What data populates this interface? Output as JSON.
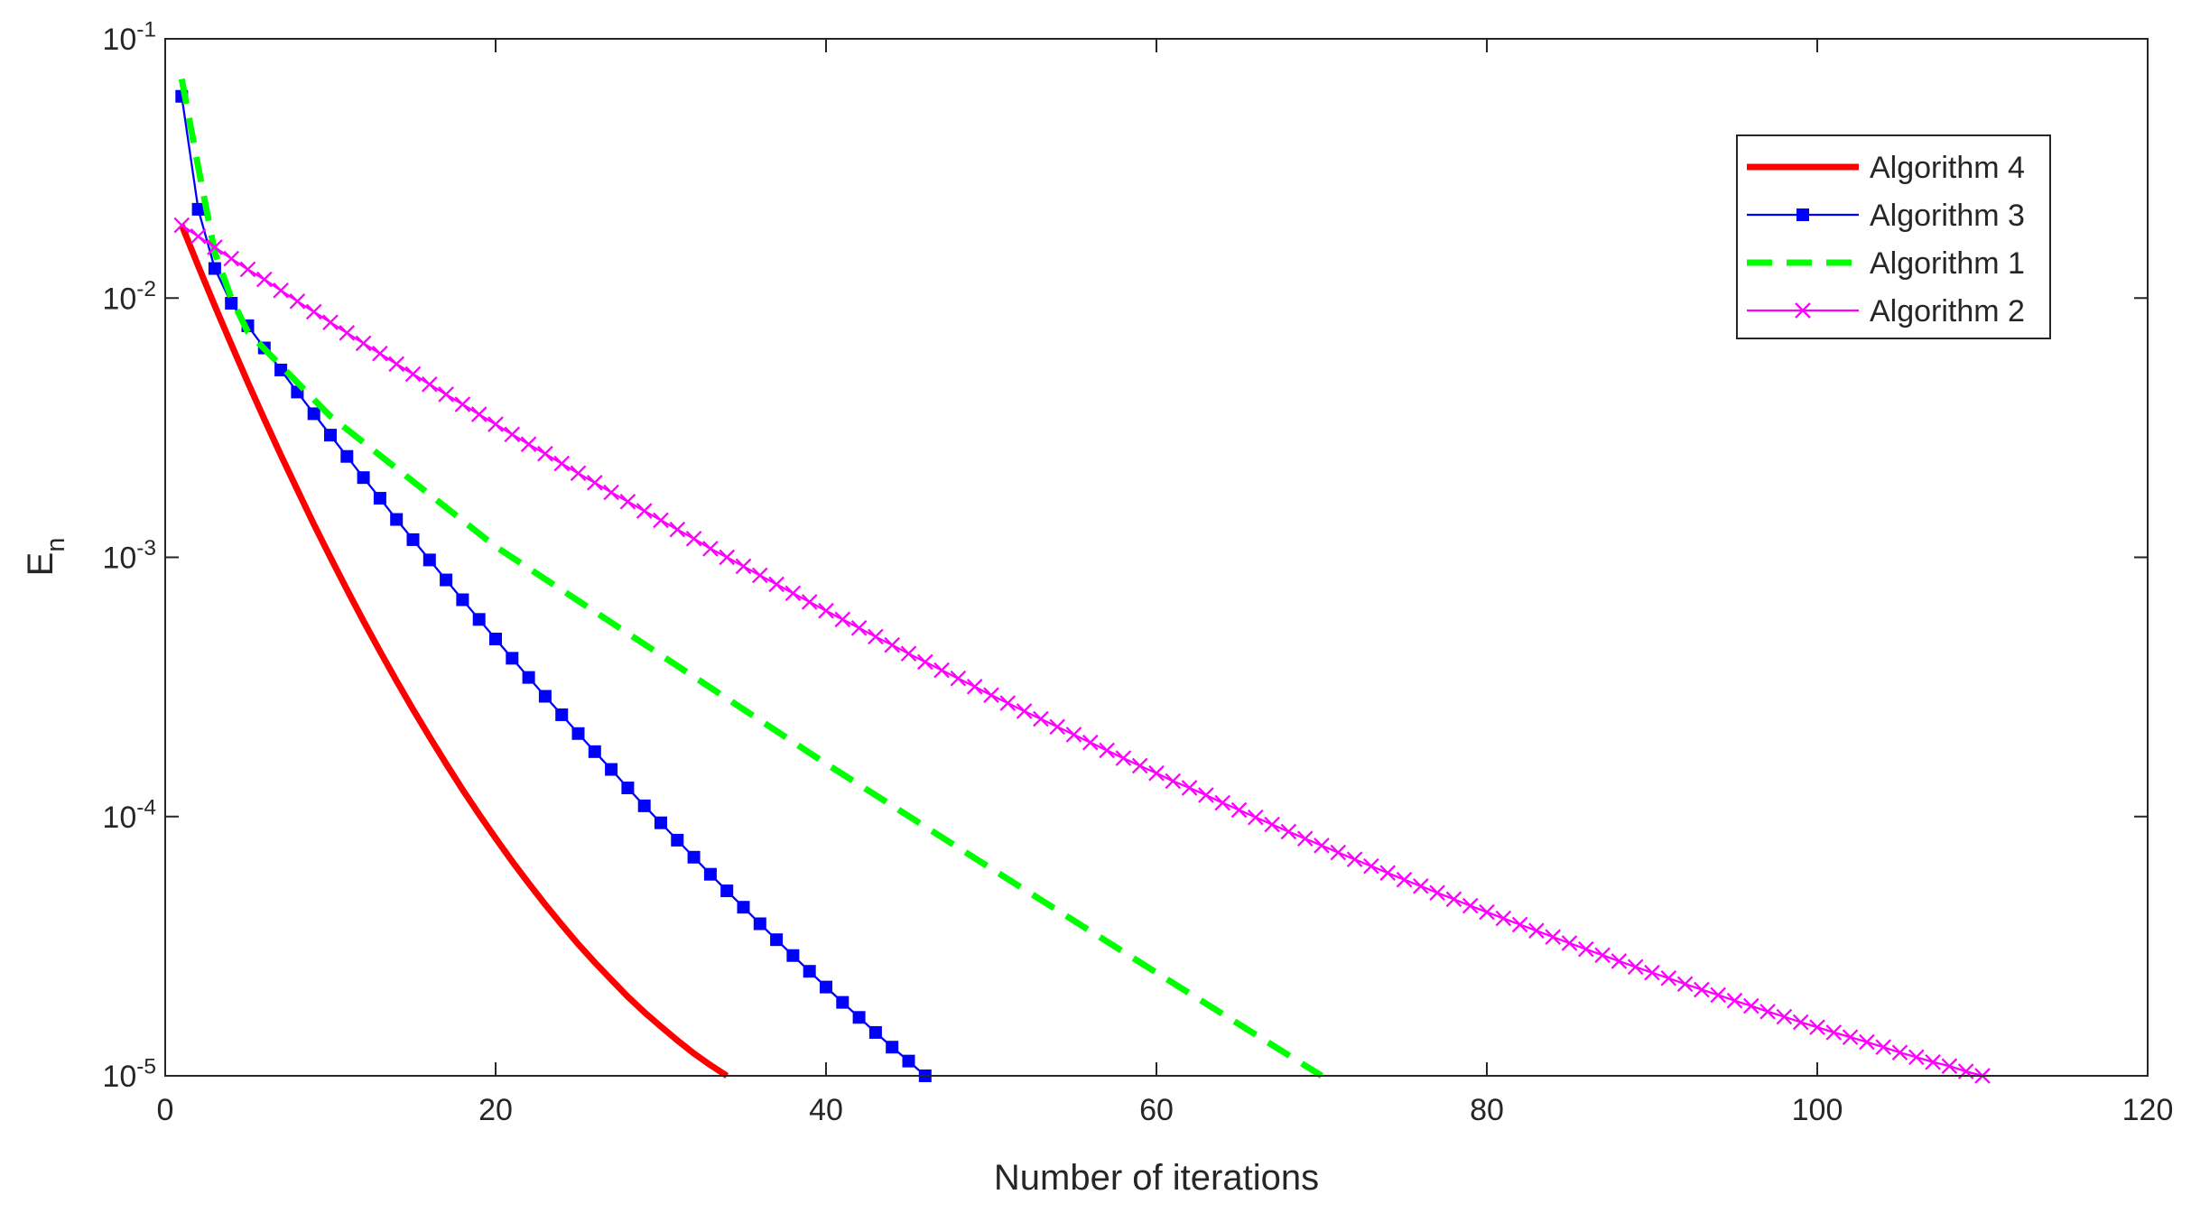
{
  "chart_data": {
    "type": "line",
    "yscale": "log",
    "xlabel": "Number of iterations",
    "ylabel": "E_n",
    "xlim": [
      0,
      120
    ],
    "xticks": [
      0,
      20,
      40,
      60,
      80,
      100,
      120
    ],
    "ylim": [
      1e-05,
      0.1
    ],
    "yticks": [
      {
        "value": 1e-05,
        "label": "10^-5"
      },
      {
        "value": 0.0001,
        "label": "10^-4"
      },
      {
        "value": 0.001,
        "label": "10^-3"
      },
      {
        "value": 0.01,
        "label": "10^-2"
      },
      {
        "value": 0.1,
        "label": "10^-1"
      }
    ],
    "grid": false,
    "legend": "northeast",
    "series": [
      {
        "name": "Algorithm 4",
        "color": "#ff0000",
        "line_style": "solid",
        "line_width": 7,
        "marker": "none",
        "x": [
          1,
          2,
          3,
          4,
          5,
          6,
          7,
          8,
          9,
          10,
          11,
          12,
          13,
          14,
          15,
          16,
          17,
          18,
          19,
          20,
          21,
          22,
          23,
          24,
          25,
          26,
          27,
          28,
          29,
          30,
          31,
          32,
          33,
          34
        ],
        "values": [
          0.0191,
          0.0133,
          0.00934,
          0.00663,
          0.00473,
          0.00341,
          0.00248,
          0.00182,
          0.00134,
          0.001,
          0.000751,
          0.000568,
          0.000434,
          0.000334,
          0.000259,
          0.000203,
          0.00016,
          0.000127,
          0.000102,
          8.25e-05,
          6.72e-05,
          5.53e-05,
          4.58e-05,
          3.83e-05,
          3.22e-05,
          2.74e-05,
          2.35e-05,
          2.02e-05,
          1.76e-05,
          1.55e-05,
          1.37e-05,
          1.22e-05,
          1.1e-05,
          1e-05
        ]
      },
      {
        "name": "Algorithm 3",
        "color": "#0000ff",
        "line_style": "solid",
        "line_width": 2.3,
        "marker": "square",
        "x": [
          1,
          2,
          3,
          4,
          5,
          6,
          7,
          8,
          9,
          10,
          11,
          12,
          13,
          14,
          15,
          16,
          17,
          18,
          19,
          20,
          21,
          22,
          23,
          24,
          25,
          26,
          27,
          28,
          29,
          30,
          31,
          32,
          33,
          34,
          35,
          36,
          37,
          38,
          39,
          40,
          41,
          42,
          43,
          44,
          45,
          46
        ],
        "values": [
          0.06,
          0.022,
          0.013,
          0.00955,
          0.00782,
          0.00642,
          0.00528,
          0.00434,
          0.00358,
          0.00296,
          0.00245,
          0.00203,
          0.00169,
          0.0014,
          0.00117,
          0.000977,
          0.000818,
          0.000686,
          0.000576,
          0.000484,
          0.000408,
          0.000344,
          0.000291,
          0.000247,
          0.000209,
          0.000178,
          0.000152,
          0.000129,
          0.00011,
          9.46e-05,
          8.11e-05,
          6.97e-05,
          5.99e-05,
          5.17e-05,
          4.47e-05,
          3.86e-05,
          3.35e-05,
          2.91e-05,
          2.53e-05,
          2.2e-05,
          1.92e-05,
          1.68e-05,
          1.47e-05,
          1.29e-05,
          1.14e-05,
          1e-05
        ]
      },
      {
        "name": "Algorithm 1",
        "color": "#00ff00",
        "line_style": "dashed",
        "line_width": 7,
        "marker": "none",
        "x": [
          1,
          2,
          3,
          4,
          5,
          10,
          20,
          30,
          40,
          50,
          60,
          70
        ],
        "values": [
          0.07,
          0.032,
          0.015,
          0.01,
          0.0074,
          0.0035,
          0.0011,
          0.00042,
          0.00016,
          6.3e-05,
          2.5e-05,
          1e-05
        ]
      },
      {
        "name": "Algorithm 2",
        "color": "#ff00ff",
        "line_style": "solid",
        "line_width": 2.3,
        "marker": "x",
        "x": [
          1,
          2,
          3,
          4,
          5,
          6,
          7,
          8,
          9,
          10,
          11,
          12,
          13,
          14,
          15,
          16,
          17,
          18,
          19,
          20,
          21,
          22,
          23,
          24,
          25,
          26,
          27,
          28,
          29,
          30,
          31,
          32,
          33,
          34,
          35,
          36,
          37,
          38,
          39,
          40,
          41,
          42,
          43,
          44,
          45,
          46,
          47,
          48,
          49,
          50,
          51,
          52,
          53,
          54,
          55,
          56,
          57,
          58,
          59,
          60,
          61,
          62,
          63,
          64,
          65,
          66,
          67,
          68,
          69,
          70,
          71,
          72,
          73,
          74,
          75,
          76,
          77,
          78,
          79,
          80,
          81,
          82,
          83,
          84,
          85,
          86,
          87,
          88,
          89,
          90,
          91,
          92,
          93,
          94,
          95,
          96,
          97,
          98,
          99,
          100,
          101,
          102,
          103,
          104,
          105,
          106,
          107,
          108,
          109,
          110
        ],
        "values": [
          0.0191,
          0.0173,
          0.0157,
          0.0142,
          0.0129,
          0.0118,
          0.0107,
          0.00972,
          0.00885,
          0.00806,
          0.00734,
          0.00669,
          0.00611,
          0.00557,
          0.00509,
          0.00465,
          0.00425,
          0.00389,
          0.00356,
          0.00326,
          0.00298,
          0.00273,
          0.00251,
          0.0023,
          0.00211,
          0.00194,
          0.00178,
          0.00164,
          0.00151,
          0.00139,
          0.00128,
          0.00118,
          0.00108,
          0.001,
          0.000923,
          0.000852,
          0.000787,
          0.000727,
          0.000673,
          0.000622,
          0.000576,
          0.000534,
          0.000494,
          0.000459,
          0.000425,
          0.000395,
          0.000367,
          0.000341,
          0.000317,
          0.000294,
          0.000274,
          0.000255,
          0.000238,
          0.000222,
          0.000207,
          0.000193,
          0.00018,
          0.000168,
          0.000157,
          0.000147,
          0.000137,
          0.000129,
          0.000121,
          0.000113,
          0.000106,
          9.93e-05,
          9.32e-05,
          8.75e-05,
          8.22e-05,
          7.73e-05,
          7.27e-05,
          6.84e-05,
          6.44e-05,
          6.06e-05,
          5.71e-05,
          5.39e-05,
          5.08e-05,
          4.8e-05,
          4.53e-05,
          4.28e-05,
          4.05e-05,
          3.83e-05,
          3.63e-05,
          3.43e-05,
          3.25e-05,
          3.08e-05,
          2.92e-05,
          2.77e-05,
          2.63e-05,
          2.5e-05,
          2.38e-05,
          2.26e-05,
          2.15e-05,
          2.05e-05,
          1.95e-05,
          1.86e-05,
          1.77e-05,
          1.69e-05,
          1.61e-05,
          1.54e-05,
          1.47e-05,
          1.41e-05,
          1.35e-05,
          1.29e-05,
          1.23e-05,
          1.18e-05,
          1.13e-05,
          1.09e-05,
          1.04e-05,
          1e-05
        ]
      }
    ]
  }
}
